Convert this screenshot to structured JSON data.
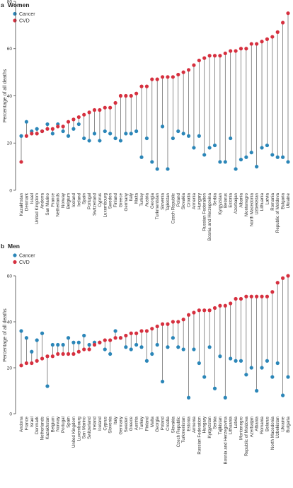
{
  "chart_data": [
    {
      "type": "scatter",
      "panel_letter": "a",
      "title": "Women",
      "ylabel": "Percentage of all deaths",
      "ylim": [
        0,
        80
      ],
      "yticks": [
        0,
        20,
        40,
        60,
        80
      ],
      "legend": [
        "Cancer",
        "CVD"
      ],
      "legend_position": "top-left",
      "grid": false,
      "categories": [
        "Kazakhstan",
        "Denmark",
        "Israel",
        "United Kingdom",
        "Andorra",
        "San Marino",
        "France",
        "Netherlands",
        "Norway",
        "Belgium",
        "Iceland",
        "Ireland",
        "Spain",
        "Portugal",
        "Switzerland",
        "Cyprus",
        "Luxembourg",
        "Sweden",
        "Finland",
        "Greece",
        "Germany",
        "Italy",
        "Malta",
        "Turkey",
        "Austria",
        "Georgia",
        "Turkmenistan",
        "Slovenia",
        "Tajikistan",
        "Czech Republic",
        "Poland",
        "Slovakia",
        "Croatia",
        "Armenia",
        "Hungary",
        "Russian Federation",
        "Bosnia and Herzegovina",
        "Serbia",
        "Kyrgyzstan",
        "Belarus",
        "Estonia",
        "Azerbaijan",
        "Albania",
        "Montenegro",
        "North Macedonia",
        "Uzbekistan",
        "Lithuania",
        "Latvia",
        "Romania",
        "Republic of Moldova",
        "Bulgaria",
        "Ukraine"
      ],
      "series": [
        {
          "name": "Cancer",
          "values": [
            23,
            29,
            25,
            26,
            25,
            28,
            24,
            28,
            25,
            23,
            26,
            28,
            22,
            21,
            24,
            21,
            25,
            24,
            22,
            21,
            24,
            24,
            25,
            14,
            22,
            12,
            9,
            27,
            9,
            22,
            25,
            24,
            23,
            18,
            23,
            15,
            18,
            19,
            12,
            12,
            22,
            9,
            13,
            14,
            16,
            10,
            18,
            19,
            15,
            14,
            14,
            12
          ]
        },
        {
          "name": "CVD",
          "values": [
            12,
            23,
            24,
            24,
            25,
            26,
            26,
            27,
            27,
            29,
            30,
            31,
            32,
            33,
            34,
            34,
            35,
            35,
            37,
            40,
            40,
            40,
            41,
            44,
            44,
            47,
            47,
            48,
            48,
            48,
            49,
            50,
            51,
            53,
            55,
            56,
            57,
            57,
            57,
            58,
            59,
            59,
            60,
            60,
            62,
            62,
            63,
            64,
            65,
            67,
            71,
            75
          ]
        }
      ]
    },
    {
      "type": "scatter",
      "panel_letter": "b",
      "title": "Men",
      "ylabel": "Percentage of all deaths",
      "ylim": [
        0,
        60
      ],
      "yticks": [
        0,
        20,
        40,
        60
      ],
      "legend": [
        "Cancer",
        "CVD"
      ],
      "legend_position": "top-left",
      "grid": false,
      "categories": [
        "Andorra",
        "France",
        "Israel",
        "Denmark",
        "Netherlands",
        "Kazakhstan",
        "Belgium",
        "Norway",
        "Portugal",
        "Spain",
        "United Kingdom",
        "Luxembourg",
        "San Marino",
        "Switzerland",
        "Ireland",
        "Iceland",
        "Cyprus",
        "Slovenia",
        "Italy",
        "Germany",
        "Sweden",
        "Greece",
        "Austria",
        "Turkey",
        "Finland",
        "Malta",
        "Georgia",
        "Poland",
        "Croatia",
        "Slovakia",
        "Czech Republic",
        "Turkmenistan",
        "Estonia",
        "Armenia",
        "Russian Federation",
        "Hungary",
        "Kyrgyzstan",
        "Serbia",
        "Tajikistan",
        "Bosnia and Herzegovina",
        "Lithuania",
        "Latvia",
        "Montenegro",
        "Republic of Moldova",
        "Azerbaijan",
        "Albania",
        "Romania",
        "Belarus",
        "North Macedonia",
        "Uzbekistan",
        "Ukraine",
        "Bulgaria"
      ],
      "series": [
        {
          "name": "Cancer",
          "values": [
            36,
            33,
            27,
            32,
            35,
            12,
            30,
            30,
            30,
            33,
            31,
            31,
            34,
            30,
            31,
            31,
            28,
            26,
            36,
            33,
            29,
            28,
            30,
            29,
            23,
            26,
            30,
            14,
            29,
            33,
            29,
            28,
            7,
            28,
            22,
            16,
            29,
            11,
            25,
            7,
            24,
            23,
            23,
            17,
            20,
            10,
            20,
            23,
            16,
            22,
            8,
            16
          ]
        },
        {
          "name": "CVD",
          "values": [
            21,
            22,
            22,
            23,
            24,
            25,
            25,
            26,
            26,
            26,
            26,
            27,
            28,
            28,
            30,
            31,
            32,
            32,
            33,
            33,
            34,
            35,
            35,
            36,
            36,
            37,
            38,
            39,
            39,
            40,
            40,
            41,
            43,
            44,
            45,
            45,
            45,
            46,
            47,
            47,
            48,
            50,
            50,
            51,
            51,
            51,
            51,
            51,
            53,
            57,
            59,
            60
          ]
        }
      ]
    }
  ],
  "colors": {
    "cancer": "#2b86b8",
    "cvd": "#d6303f",
    "stem": "#5c5c5c",
    "axis": "#444444",
    "text": "#333333"
  }
}
